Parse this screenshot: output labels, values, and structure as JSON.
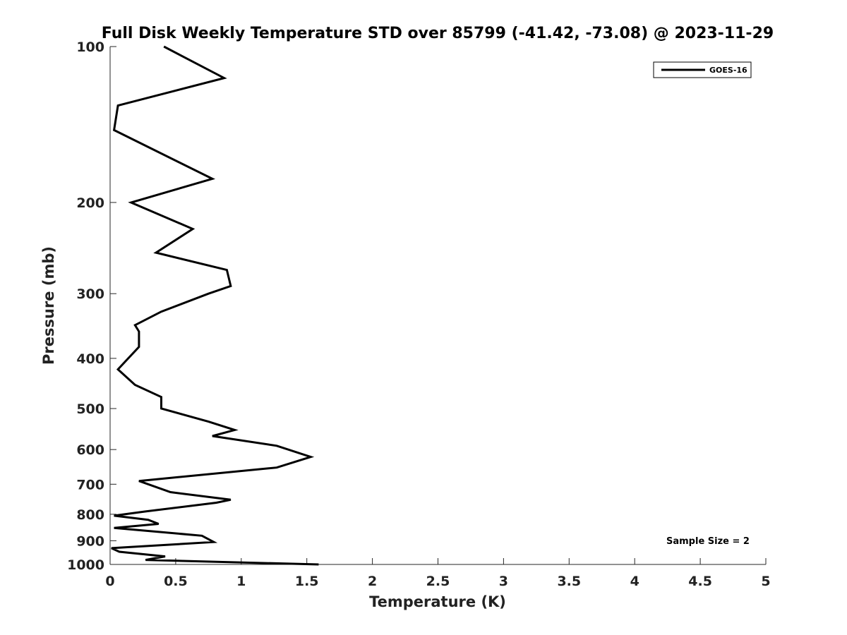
{
  "chart_data": {
    "type": "line",
    "title": "Full Disk Weekly Temperature STD over 85799 (-41.42, -73.08) @ 2023-11-29",
    "xlabel": "Temperature (K)",
    "ylabel": "Pressure (mb)",
    "xlim": [
      0,
      5
    ],
    "ylim": [
      1000,
      100
    ],
    "yscale": "log",
    "xticks": [
      "0",
      "0.5",
      "1",
      "1.5",
      "2",
      "2.5",
      "3",
      "3.5",
      "4",
      "4.5",
      "5"
    ],
    "yticks": [
      "100",
      "200",
      "300",
      "400",
      "500",
      "600",
      "700",
      "800",
      "900",
      "1000"
    ],
    "grid": false,
    "legend_position": "top-right",
    "annotation": "Sample Size = 2",
    "series": [
      {
        "name": "GOES-16",
        "color": "#000000",
        "x": [
          0.41,
          0.87,
          0.06,
          0.03,
          0.78,
          0.16,
          0.63,
          0.35,
          0.89,
          0.92,
          0.75,
          0.39,
          0.19,
          0.22,
          0.22,
          0.06,
          0.19,
          0.39,
          0.39,
          0.75,
          0.95,
          0.78,
          1.27,
          1.53,
          1.27,
          0.22,
          0.46,
          0.92,
          0.81,
          0.27,
          0.03,
          0.29,
          0.37,
          0.03,
          0.7,
          0.79,
          0.01,
          0.07,
          0.42,
          0.27,
          1.59
        ],
        "y": [
          100,
          115,
          130,
          145,
          180,
          200,
          225,
          250,
          270,
          290,
          300,
          325,
          345,
          355,
          380,
          420,
          450,
          475,
          500,
          530,
          550,
          565,
          590,
          620,
          650,
          690,
          725,
          750,
          760,
          790,
          805,
          820,
          835,
          850,
          880,
          905,
          930,
          945,
          965,
          980,
          1000
        ]
      }
    ]
  }
}
